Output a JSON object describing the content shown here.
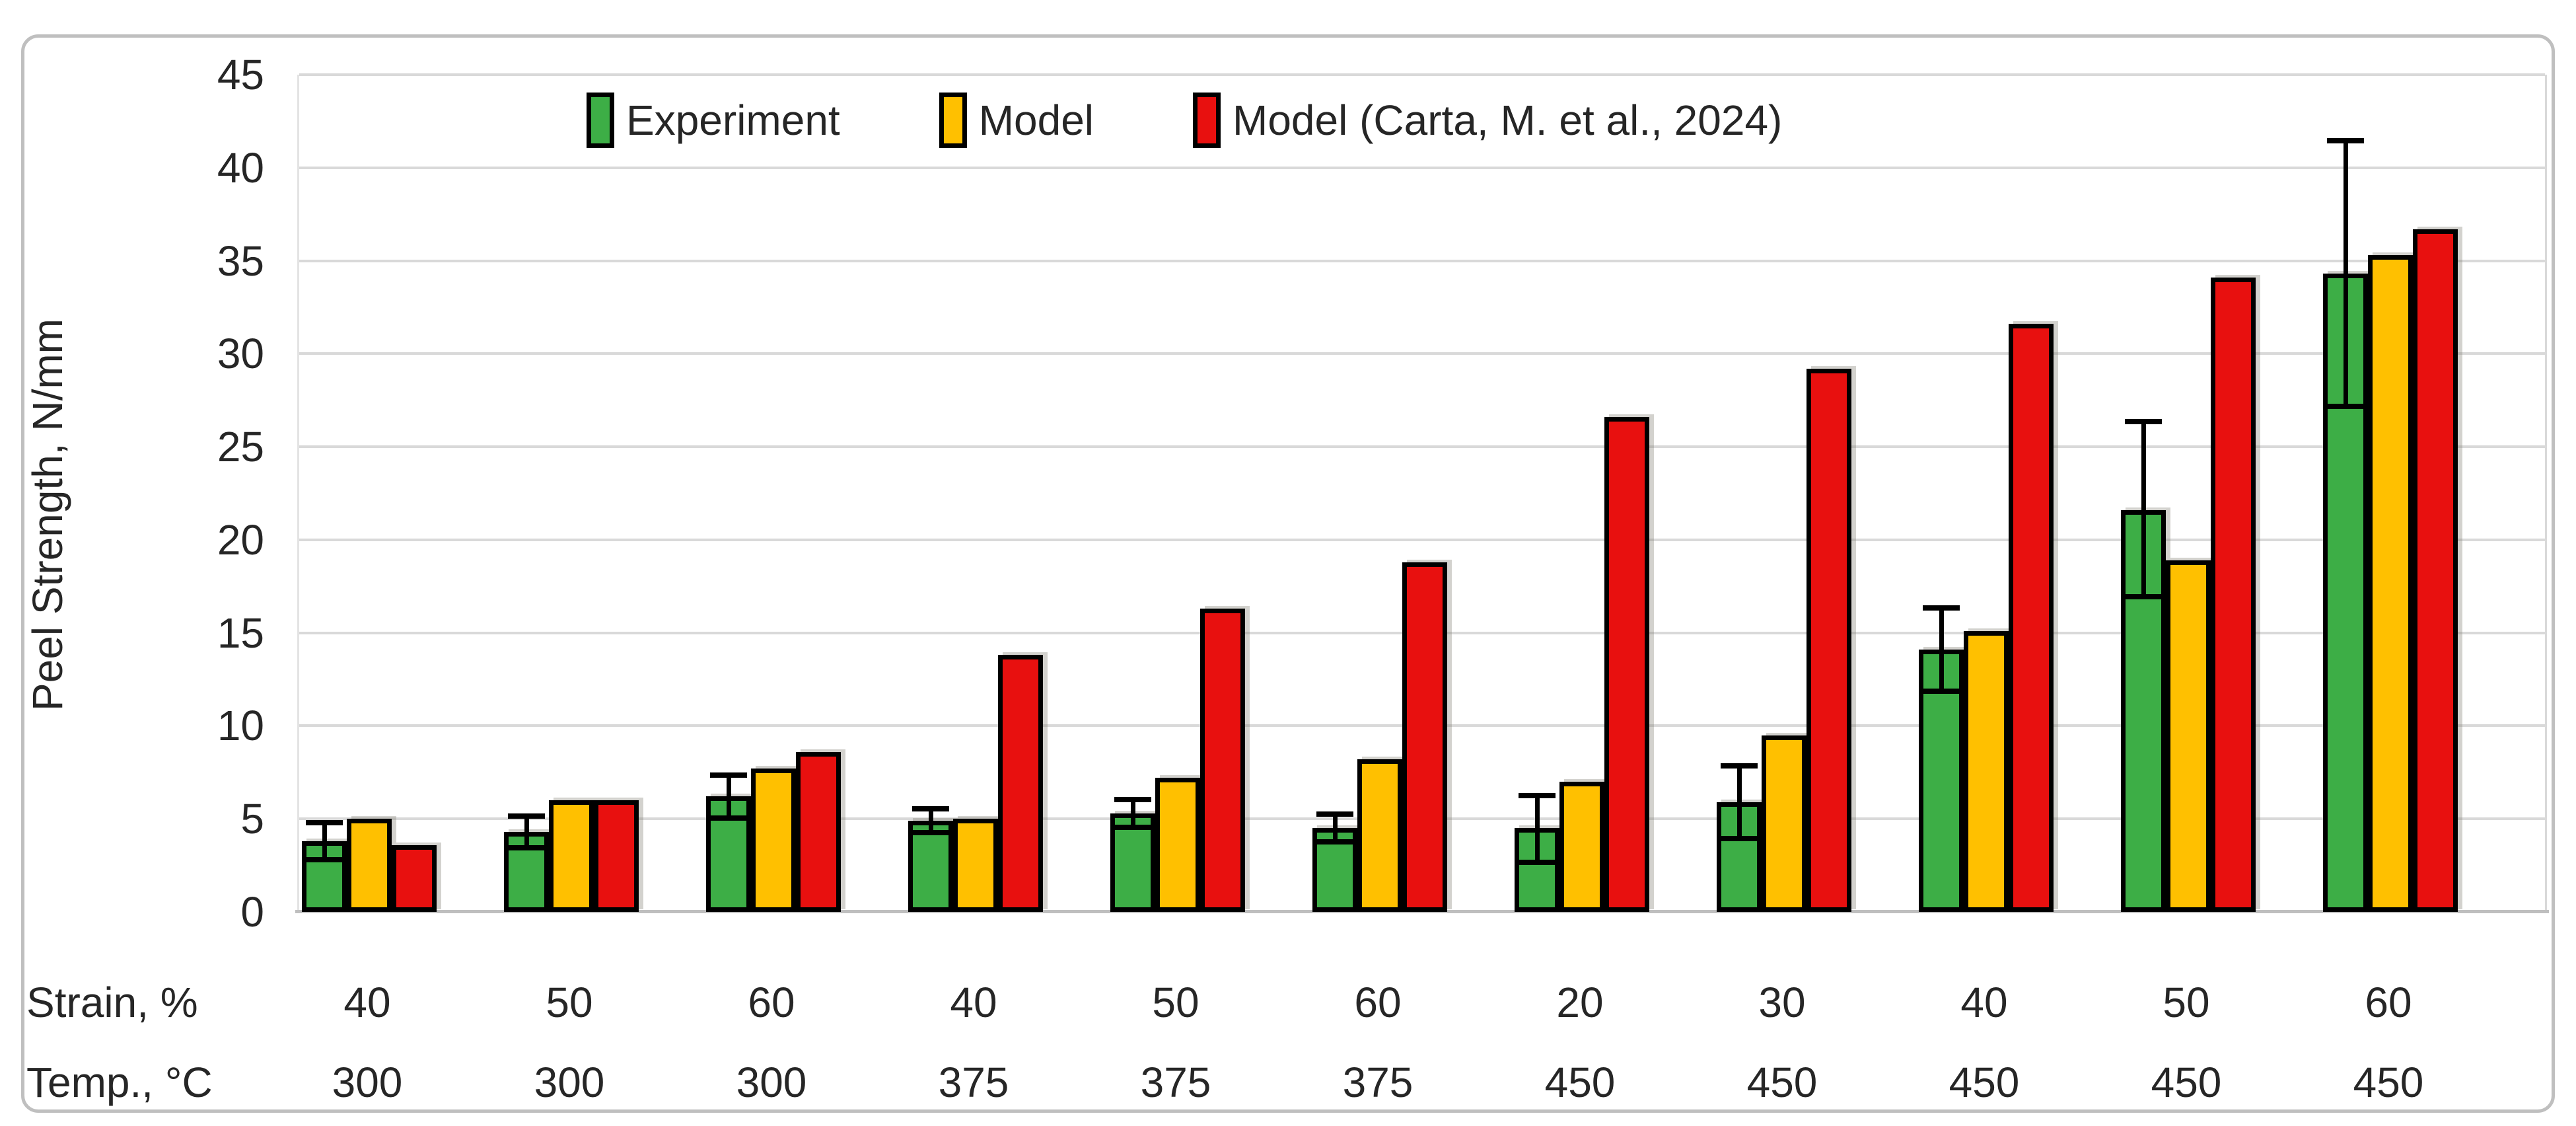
{
  "figure": {
    "border_color": "#BFBFBF",
    "background": "#FFFFFF"
  },
  "legend": {
    "items": [
      {
        "label": "Experiment",
        "color": "#3DAE46"
      },
      {
        "label": "Model",
        "color": "#FFC000"
      },
      {
        "label": "Model (Carta, M. et al., 2024)",
        "color": "#E8100F"
      }
    ]
  },
  "y_axis": {
    "title": "Peel Strength, N/mm",
    "ticks": [
      0,
      5,
      10,
      15,
      20,
      25,
      30,
      35,
      40,
      45
    ],
    "max": 45
  },
  "x_axis": {
    "row1_header": "Strain, %",
    "row2_header": "Temp., °C",
    "strain": [
      "40",
      "50",
      "60",
      "40",
      "50",
      "60",
      "20",
      "30",
      "40",
      "50",
      "60"
    ],
    "temp": [
      "300",
      "300",
      "300",
      "375",
      "375",
      "375",
      "450",
      "450",
      "450",
      "450",
      "450"
    ]
  },
  "chart_data": {
    "type": "bar",
    "title": "",
    "xlabel": "",
    "ylabel": "Peel Strength, N/mm",
    "ylim": [
      0,
      45
    ],
    "grid": true,
    "legend_position": "top",
    "categories": [
      {
        "strain": "40",
        "temp": "300"
      },
      {
        "strain": "50",
        "temp": "300"
      },
      {
        "strain": "60",
        "temp": "300"
      },
      {
        "strain": "40",
        "temp": "375"
      },
      {
        "strain": "50",
        "temp": "375"
      },
      {
        "strain": "60",
        "temp": "375"
      },
      {
        "strain": "20",
        "temp": "450"
      },
      {
        "strain": "30",
        "temp": "450"
      },
      {
        "strain": "40",
        "temp": "450"
      },
      {
        "strain": "50",
        "temp": "450"
      },
      {
        "strain": "60",
        "temp": "450"
      }
    ],
    "series": [
      {
        "name": "Experiment",
        "color": "#3DAE46",
        "values": [
          3.8,
          4.3,
          6.2,
          4.9,
          5.3,
          4.5,
          4.5,
          5.9,
          14.1,
          21.6,
          34.3
        ],
        "err_up": [
          0.85,
          0.7,
          1.0,
          0.5,
          0.6,
          0.6,
          1.6,
          1.8,
          2.1,
          4.6,
          7.0
        ],
        "err_down": [
          0.85,
          0.7,
          1.0,
          0.5,
          0.6,
          0.6,
          1.7,
          1.8,
          2.1,
          4.5,
          7.0
        ]
      },
      {
        "name": "Model",
        "color": "#FFC000",
        "values": [
          5.0,
          6.0,
          7.7,
          5.0,
          7.2,
          8.2,
          7.0,
          9.5,
          15.1,
          18.9,
          35.3
        ]
      },
      {
        "name": "Model (Carta, M. et al., 2024)",
        "color": "#E8100F",
        "values": [
          3.6,
          6.0,
          8.6,
          13.8,
          16.3,
          18.8,
          26.6,
          29.2,
          31.6,
          34.1,
          36.7
        ]
      }
    ]
  }
}
